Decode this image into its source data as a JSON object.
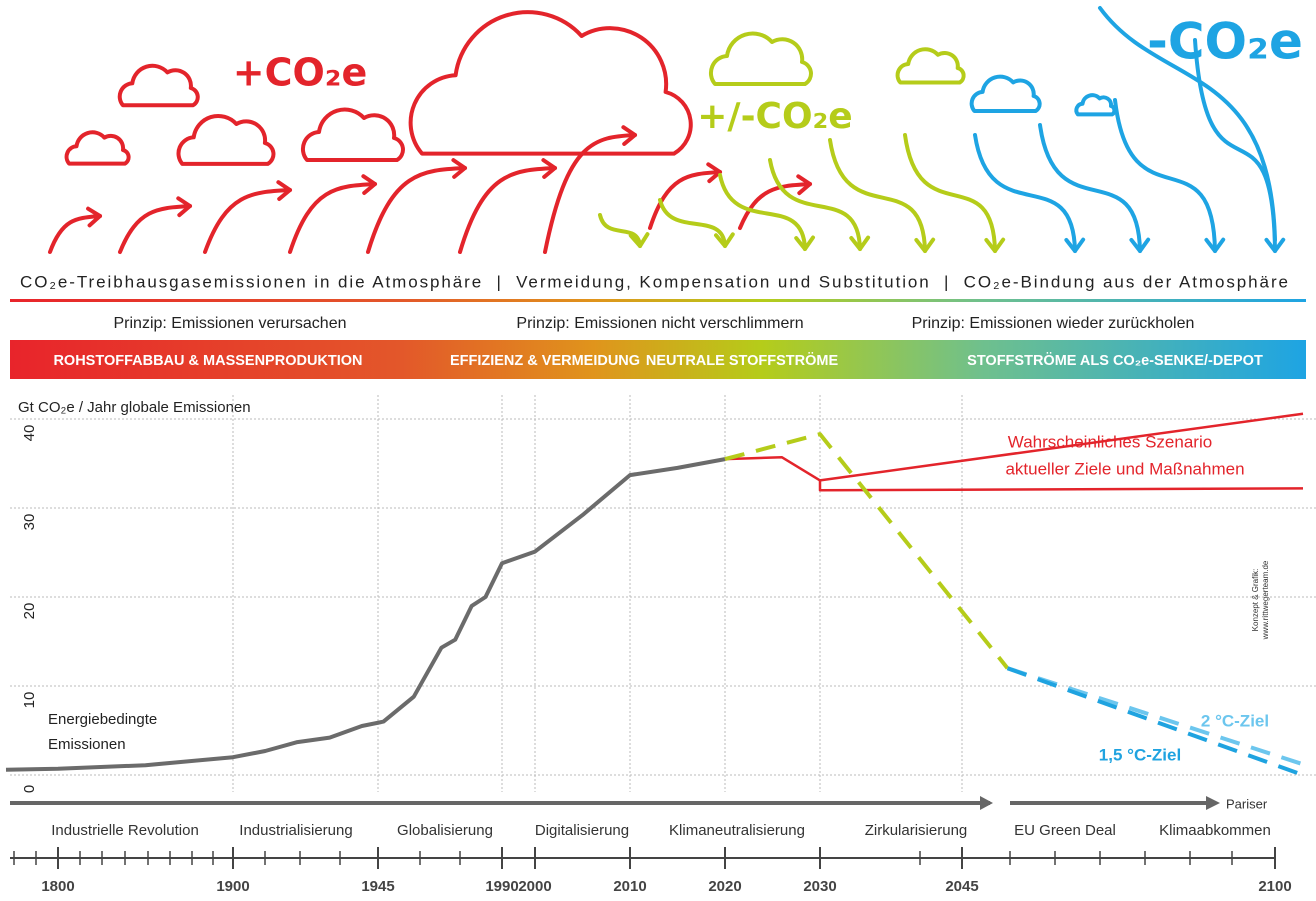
{
  "header": {
    "emissions_labels": [
      "+CO₂e",
      "+/-CO₂e",
      "-CO₂e"
    ],
    "caption": "CO₂e-Treibhausgasemissionen in die Atmosphäre  |  Vermeidung, Kompensation und Substitution  |  CO₂e-Bindung aus der Atmosphäre",
    "principles": [
      "Prinzip: Emissionen verursachen",
      "Prinzip: Emissionen nicht verschlimmern",
      "Prinzip: Emissionen wieder zurückholen"
    ],
    "phases": [
      "ROHSTOFFABBAU & MASSENPRODUKTION",
      "EFFIZIENZ & VERMEIDUNG",
      "NEUTRALE STOFFSTRÖME",
      "STOFFSTRÖME ALS CO₂e-SENKE/-DEPOT"
    ]
  },
  "credit": [
    "Konzept & Grafik:",
    "www.rittwegerteam.de"
  ],
  "chart_data": {
    "type": "line",
    "title": "Gt CO₂e / Jahr globale Emissionen",
    "xlim": [
      1770,
      2105
    ],
    "xticks": [
      1800,
      1900,
      1945,
      1990,
      2000,
      2010,
      2020,
      2030,
      2045,
      2100
    ],
    "ylim": [
      -1.5,
      41.5
    ],
    "yticks": [
      0,
      10,
      20,
      30,
      40
    ],
    "grid": true,
    "eras": [
      "Industrielle Revolution",
      "Industrialisierung",
      "Globalisierung",
      "Digitalisierung",
      "Klimaneutralisierung",
      "Zirkularisierung",
      "EU Green Deal",
      "Pariser",
      "Klimaabkommen"
    ],
    "series": [
      {
        "name": [
          "Energiebedingte",
          "Emissionen"
        ],
        "color": "#6b6b6b",
        "dashed": false,
        "x": [
          1770,
          1800,
          1850,
          1900,
          1910,
          1920,
          1930,
          1940,
          1947,
          1958,
          1968,
          1973,
          1979,
          1984,
          1990,
          2000,
          2005,
          2010,
          2015,
          2020
        ],
        "values": [
          0.6,
          0.7,
          1.1,
          2.0,
          2.7,
          3.7,
          4.2,
          5.5,
          6.0,
          8.8,
          14.3,
          15.2,
          19.0,
          20.0,
          23.8,
          25.1,
          29.2,
          33.7,
          34.5,
          35.5
        ]
      },
      {
        "name": [
          "Wahrscheinliches Szenario",
          "aktueller Ziele und Maßnahmen"
        ],
        "color": "#e3242b",
        "dashed": false,
        "x": [
          2020,
          2026,
          2030,
          2105
        ],
        "values": [
          35.5,
          35.7,
          33.1,
          40.6
        ]
      },
      {
        "color": "#e3242b",
        "dashed": false,
        "x": [
          2030,
          2030,
          2105
        ],
        "values": [
          33.1,
          32.0,
          32.2
        ]
      },
      {
        "color": "#b5cc1a",
        "dashed": true,
        "x": [
          2020,
          2030,
          2053
        ],
        "values": [
          35.5,
          38.3,
          12.0
        ]
      },
      {
        "name": "2 °C-Ziel",
        "color": "#6cc6ee",
        "dashed": true,
        "x": [
          2053,
          2105
        ],
        "values": [
          12.0,
          1.2
        ]
      },
      {
        "name": "1,5 °C-Ziel",
        "color": "#1fa3e0",
        "dashed": true,
        "x": [
          2053,
          2105
        ],
        "values": [
          12.0,
          0.0
        ]
      }
    ]
  }
}
